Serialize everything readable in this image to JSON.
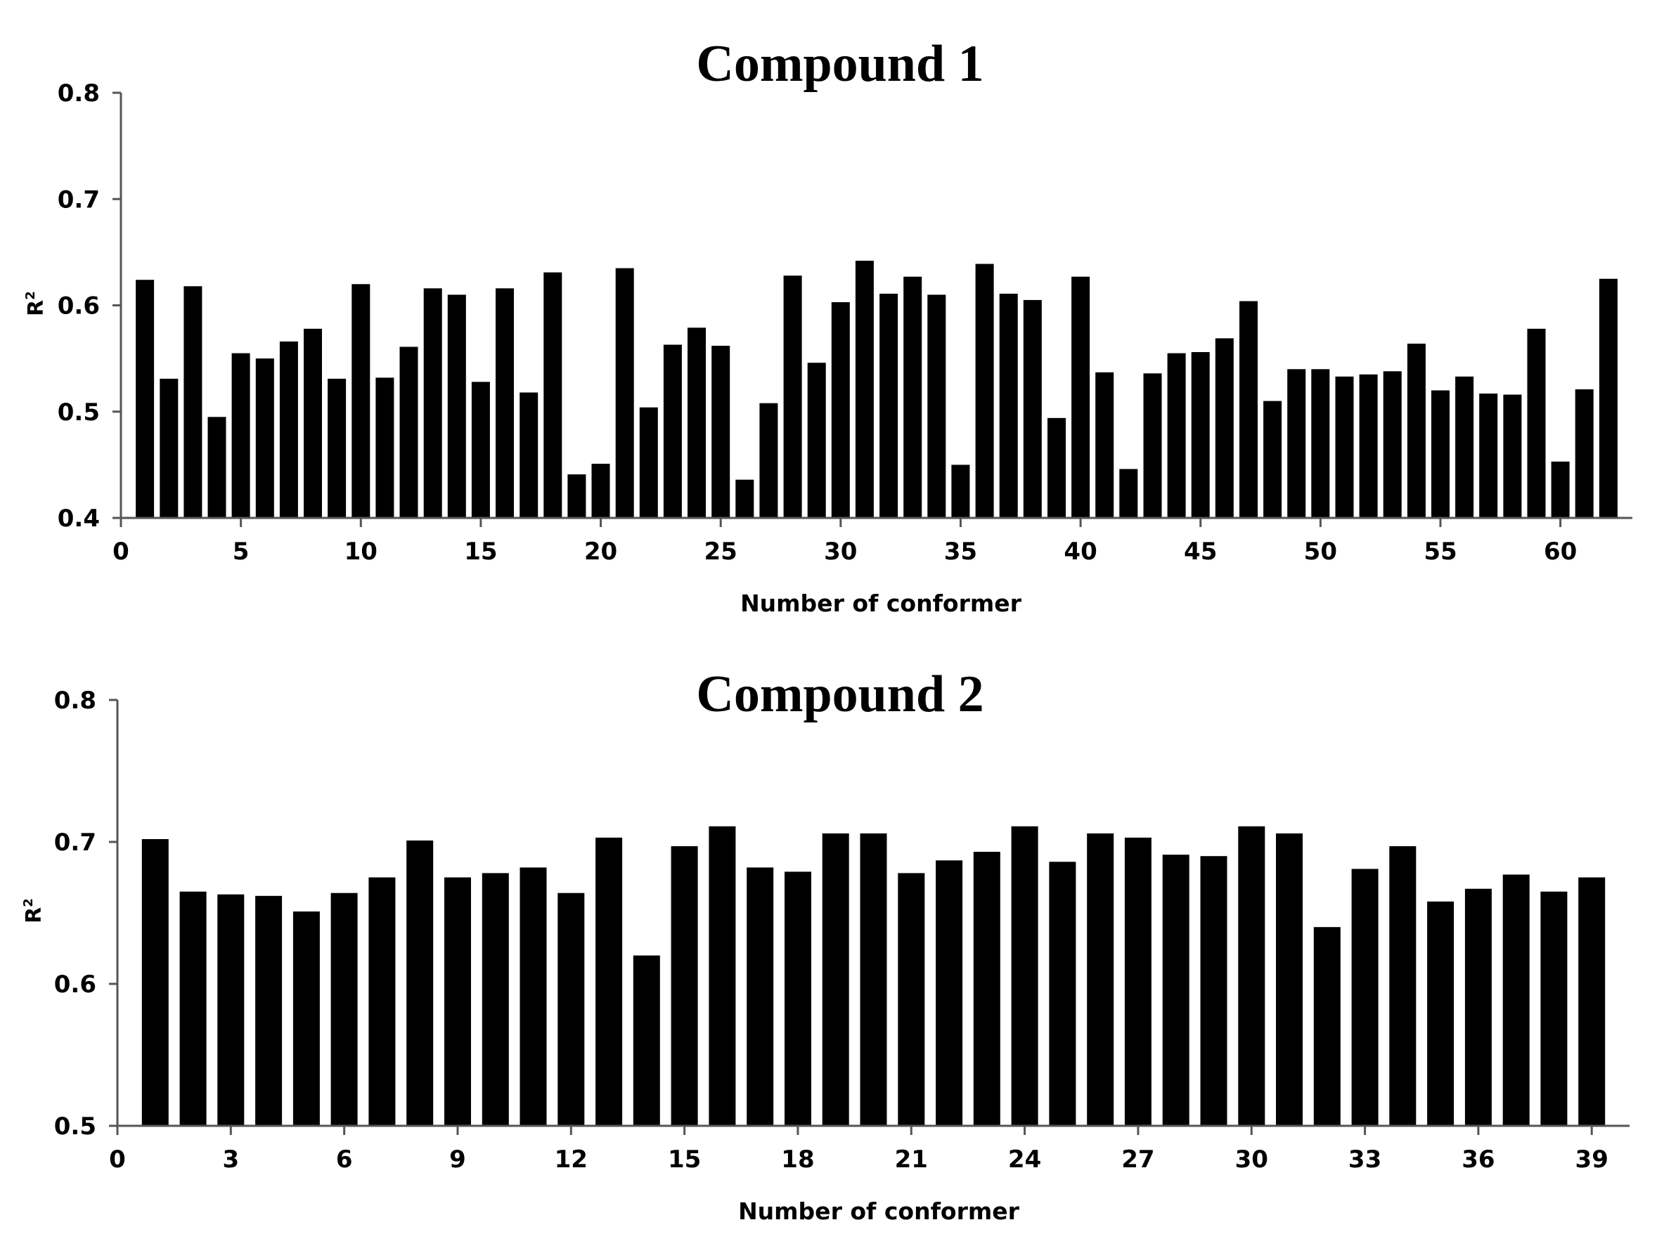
{
  "chart_data": [
    {
      "type": "bar",
      "title": "Compound 1",
      "xlabel": "Number of conformer",
      "ylabel": "R",
      "ylabel_superscript": "2",
      "x": [
        1,
        2,
        3,
        4,
        5,
        6,
        7,
        8,
        9,
        10,
        11,
        12,
        13,
        14,
        15,
        16,
        17,
        18,
        19,
        20,
        21,
        22,
        23,
        24,
        25,
        26,
        27,
        28,
        29,
        30,
        31,
        32,
        33,
        34,
        35,
        36,
        37,
        38,
        39,
        40,
        41,
        42,
        43,
        44,
        45,
        46,
        47,
        48,
        49,
        50,
        51,
        52,
        53,
        54,
        55,
        56,
        57,
        58,
        59,
        60,
        61,
        62
      ],
      "values": [
        0.624,
        0.531,
        0.618,
        0.495,
        0.555,
        0.55,
        0.566,
        0.578,
        0.531,
        0.62,
        0.532,
        0.561,
        0.616,
        0.61,
        0.528,
        0.616,
        0.518,
        0.631,
        0.441,
        0.451,
        0.635,
        0.504,
        0.563,
        0.579,
        0.562,
        0.436,
        0.508,
        0.628,
        0.546,
        0.603,
        0.642,
        0.611,
        0.627,
        0.61,
        0.45,
        0.639,
        0.611,
        0.605,
        0.494,
        0.627,
        0.537,
        0.446,
        0.536,
        0.555,
        0.556,
        0.569,
        0.604,
        0.51,
        0.54,
        0.54,
        0.533,
        0.535,
        0.538,
        0.564,
        0.52,
        0.533,
        0.517,
        0.516,
        0.578,
        0.453,
        0.521,
        0.625
      ],
      "xlim": [
        0,
        63
      ],
      "ylim": [
        0.4,
        0.8
      ],
      "xticks": [
        "0",
        "5",
        "10",
        "15",
        "20",
        "25",
        "30",
        "35",
        "40",
        "45",
        "50",
        "55",
        "60"
      ],
      "yticks": [
        "0.4",
        "0.5",
        "0.6",
        "0.7",
        "0.8"
      ],
      "bar_color": "#000000"
    },
    {
      "type": "bar",
      "title": "Compound 2",
      "xlabel": "Number of conformer",
      "ylabel": "R",
      "ylabel_superscript": "2",
      "x": [
        1,
        2,
        3,
        4,
        5,
        6,
        7,
        8,
        9,
        10,
        11,
        12,
        13,
        14,
        15,
        16,
        17,
        18,
        19,
        20,
        21,
        22,
        23,
        24,
        25,
        26,
        27,
        28,
        29,
        30,
        31,
        32,
        33,
        34,
        35,
        36,
        37,
        38,
        39
      ],
      "values": [
        0.702,
        0.665,
        0.663,
        0.662,
        0.651,
        0.664,
        0.675,
        0.701,
        0.675,
        0.678,
        0.682,
        0.664,
        0.703,
        0.62,
        0.697,
        0.711,
        0.682,
        0.679,
        0.706,
        0.706,
        0.678,
        0.687,
        0.693,
        0.711,
        0.686,
        0.706,
        0.703,
        0.691,
        0.69,
        0.711,
        0.706,
        0.64,
        0.681,
        0.697,
        0.658,
        0.667,
        0.677,
        0.665,
        0.675
      ],
      "xlim": [
        0,
        40
      ],
      "ylim": [
        0.5,
        0.8
      ],
      "xticks": [
        "0",
        "3",
        "6",
        "9",
        "12",
        "15",
        "18",
        "21",
        "24",
        "27",
        "30",
        "33",
        "36",
        "39"
      ],
      "yticks": [
        "0.5",
        "0.6",
        "0.7",
        "0.8"
      ],
      "bar_color": "#000000"
    }
  ]
}
